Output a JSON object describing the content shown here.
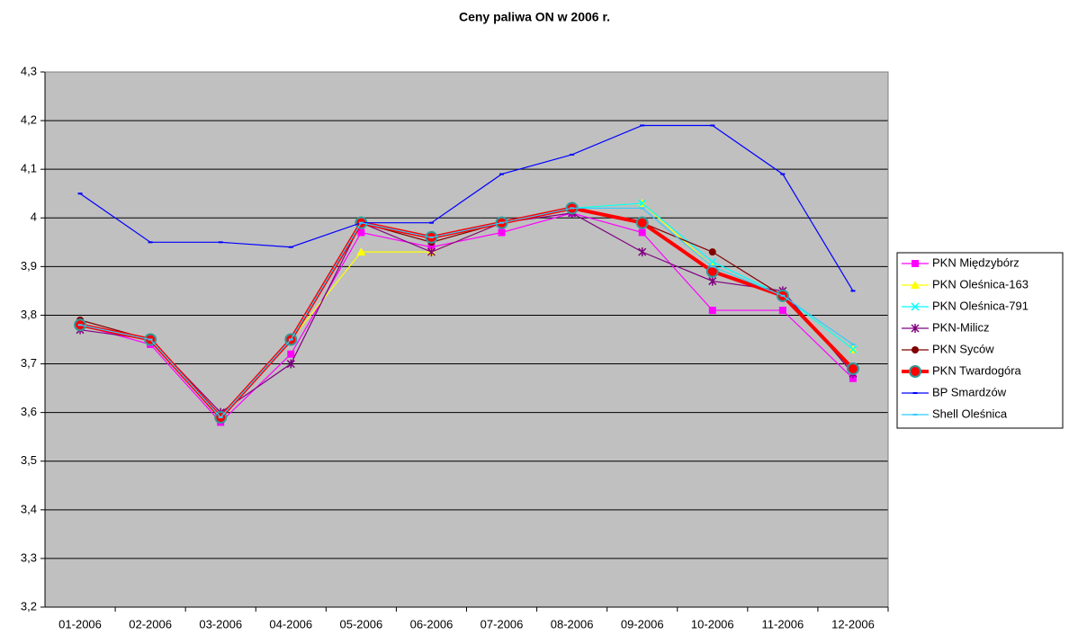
{
  "chart_data": {
    "type": "line",
    "title": "Ceny paliwa ON w 2006 r.",
    "categories": [
      "01-2006",
      "02-2006",
      "03-2006",
      "04-2006",
      "05-2006",
      "06-2006",
      "07-2006",
      "08-2006",
      "09-2006",
      "10-2006",
      "11-2006",
      "12-2006"
    ],
    "ylim": [
      3.2,
      4.3
    ],
    "yticks": [
      {
        "value": 3.2,
        "label": "3,2"
      },
      {
        "value": 3.3,
        "label": "3,3"
      },
      {
        "value": 3.4,
        "label": "3,4"
      },
      {
        "value": 3.5,
        "label": "3,5"
      },
      {
        "value": 3.6,
        "label": "3,6"
      },
      {
        "value": 3.7,
        "label": "3,7"
      },
      {
        "value": 3.8,
        "label": "3,8"
      },
      {
        "value": 3.9,
        "label": "3,9"
      },
      {
        "value": 4,
        "label": "4"
      },
      {
        "value": 4.1,
        "label": "4,1"
      },
      {
        "value": 4.2,
        "label": "4,2"
      },
      {
        "value": 4.3,
        "label": "4,3"
      }
    ],
    "grid": true,
    "legend": "right",
    "series": [
      {
        "name": "PKN Międzybórz",
        "color": "#ff00ff",
        "marker": "square",
        "values": [
          3.78,
          3.74,
          3.58,
          3.72,
          3.97,
          3.94,
          3.97,
          4.01,
          3.97,
          3.81,
          3.81,
          3.67
        ]
      },
      {
        "name": "PKN Oleśnica-163",
        "color": "#ffff00",
        "marker": "triangle",
        "values": [
          3.78,
          3.75,
          3.59,
          3.75,
          3.93,
          3.93,
          3.99,
          4.02,
          4.03,
          3.9,
          3.84,
          3.73
        ]
      },
      {
        "name": "PKN Oleśnica-791",
        "color": "#00ffff",
        "marker": "x",
        "values": [
          3.78,
          3.75,
          3.59,
          3.75,
          3.99,
          3.96,
          3.99,
          4.02,
          4.03,
          3.91,
          3.84,
          3.73
        ]
      },
      {
        "name": "PKN-Milicz",
        "color": "#800080",
        "marker": "star",
        "values": [
          3.77,
          3.75,
          3.6,
          3.7,
          3.99,
          3.93,
          3.99,
          4.01,
          3.93,
          3.87,
          3.85,
          3.68
        ]
      },
      {
        "name": "PKN Syców",
        "color": "#800000",
        "marker": "circle",
        "values": [
          3.79,
          3.75,
          3.59,
          3.75,
          3.99,
          3.95,
          3.99,
          4.02,
          3.99,
          3.93,
          3.84,
          3.69
        ]
      },
      {
        "name": "PKN Twardogóra",
        "color": "#ff0000",
        "marker": "circle-bold",
        "values": [
          3.78,
          3.75,
          3.59,
          3.75,
          3.99,
          3.96,
          3.99,
          4.02,
          3.99,
          3.89,
          3.84,
          3.69
        ]
      },
      {
        "name": "BP Smardzów",
        "color": "#0000ff",
        "marker": "dash",
        "values": [
          4.05,
          3.95,
          3.95,
          3.94,
          3.99,
          3.99,
          4.09,
          4.13,
          4.19,
          4.19,
          4.09,
          3.85
        ]
      },
      {
        "name": "Shell Oleśnica",
        "color": "#33ccff",
        "marker": "dash",
        "values": [
          3.78,
          3.75,
          3.59,
          3.75,
          3.99,
          3.96,
          3.99,
          4.02,
          4.02,
          3.9,
          3.84,
          3.74
        ]
      }
    ]
  }
}
